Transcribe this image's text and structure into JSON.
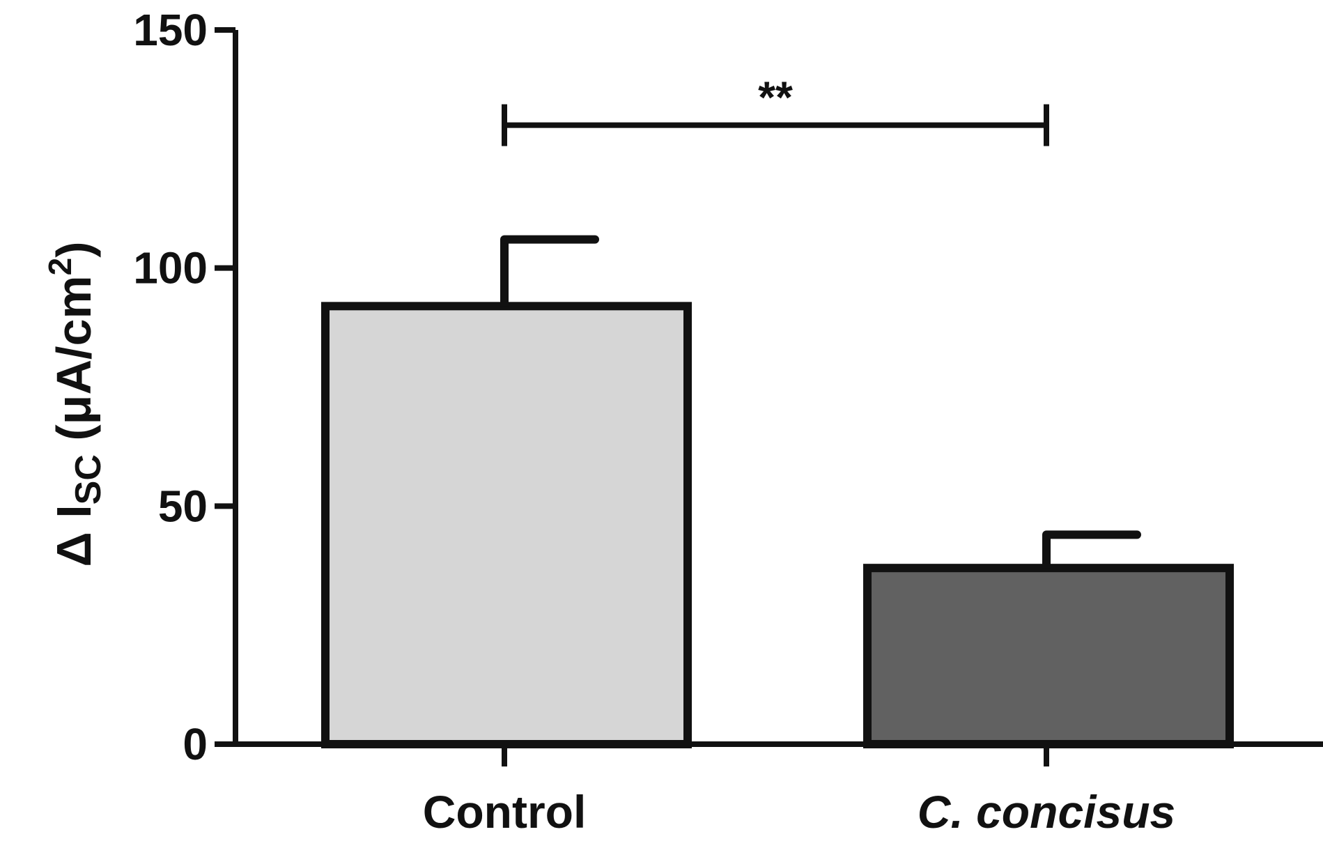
{
  "chart_data": {
    "type": "bar",
    "categories": [
      "Control",
      "C. concisus"
    ],
    "category_italic": [
      false,
      true
    ],
    "values": [
      92,
      37
    ],
    "errors": [
      14,
      7
    ],
    "colors": [
      "#d6d6d6",
      "#616161"
    ],
    "ylim": [
      0,
      150
    ],
    "yticks": [
      0,
      50,
      100,
      150
    ],
    "ylabel": {
      "prefix": "Δ I",
      "subscript": "SC",
      "middle": " (μA/cm",
      "superscript": "2",
      "suffix": ")"
    },
    "significance": {
      "between": [
        0,
        1
      ],
      "label": "**",
      "y": 130
    },
    "grid": false
  }
}
